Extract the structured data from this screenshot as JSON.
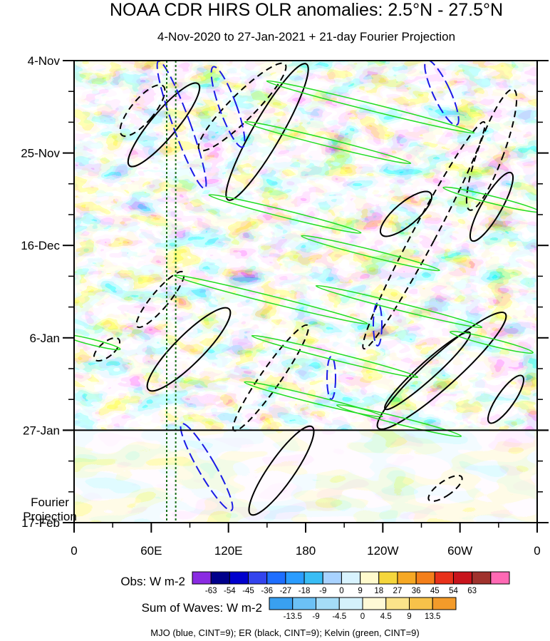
{
  "chart_data": {
    "type": "heatmap",
    "title": "NOAA CDR HIRS OLR anomalies: 2.5°N - 27.5°N",
    "subtitle": "4-Nov-2020 to 27-Jan-2021 + 21-day Fourier Projection",
    "x_axis": {
      "labels": [
        "0",
        "60E",
        "120E",
        "180",
        "120W",
        "60W",
        "0"
      ],
      "values": [
        0,
        60,
        120,
        180,
        240,
        300,
        360
      ],
      "range": [
        0,
        360
      ],
      "unit": "degrees longitude"
    },
    "y_axis": {
      "labels": [
        "4-Nov",
        "25-Nov",
        "16-Dec",
        "6-Jan",
        "27-Jan",
        "17-Feb"
      ],
      "values": [
        0,
        21,
        42,
        63,
        84,
        105
      ],
      "range_days": [
        0,
        105
      ],
      "projection_label": [
        "Fourier",
        "Projection"
      ],
      "projection_start_day": 84
    },
    "reference_lines": {
      "dotted_longitudes": [
        72,
        79
      ],
      "observation_end_day": 84
    },
    "obs_colorbar": {
      "label": "Obs: W m-2",
      "ticks": [
        "-63",
        "-54",
        "-45",
        "-36",
        "-27",
        "-18",
        "-9",
        "0",
        "9",
        "18",
        "27",
        "36",
        "45",
        "54",
        "63"
      ],
      "colors": [
        "#8a2be2",
        "#00008b",
        "#0000cd",
        "#3344ee",
        "#1e6eff",
        "#2a9cff",
        "#39bdf5",
        "#a8d2ff",
        "#d8f3ff",
        "#fffacd",
        "#f5d63c",
        "#f6a824",
        "#f47f1a",
        "#e8311a",
        "#c8141c",
        "#a0322d",
        "#ff69b4"
      ]
    },
    "waves_colorbar": {
      "label": "Sum of Waves: W m-2",
      "ticks": [
        "-13.5",
        "-9",
        "-4.5",
        "0",
        "4.5",
        "9",
        "13.5"
      ],
      "colors": [
        "#39a0f0",
        "#6cc1f5",
        "#a5dcf7",
        "#d4f1fb",
        "#fff9d6",
        "#fbe38a",
        "#f7c24a",
        "#f39b2a"
      ]
    },
    "contours": [
      {
        "name": "MJO",
        "color": "#1a1ae6",
        "cint": 9
      },
      {
        "name": "ER",
        "color": "#000000",
        "cint": 9
      },
      {
        "name": "Kelvin",
        "color": "#22dd22",
        "cint": 9
      }
    ],
    "footnote": "MJO (blue, CINT=9); ER (black, CINT=9); Kelvin (green, CINT=9)"
  }
}
